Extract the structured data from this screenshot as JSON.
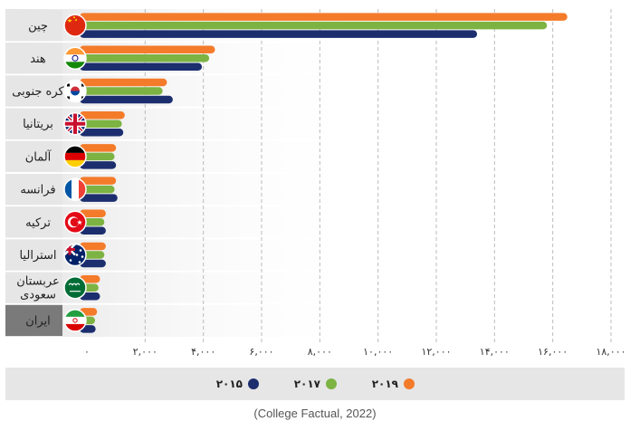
{
  "chart_data": {
    "type": "bar",
    "orientation": "horizontal",
    "categories": [
      "چین",
      "هند",
      "کره جنوبی",
      "بریتانیا",
      "آلمان",
      "فرانسه",
      "ترکیه",
      "استرالیا",
      "عربستان سعودی",
      "ایران"
    ],
    "category_lines": [
      [
        "چین"
      ],
      [
        "هند"
      ],
      [
        "کره جنوبی"
      ],
      [
        "بریتانیا"
      ],
      [
        "آلمان"
      ],
      [
        "فرانسه"
      ],
      [
        "ترکیه"
      ],
      [
        "استرالیا"
      ],
      [
        "عربستان",
        "سعودی"
      ],
      [
        "ایران"
      ]
    ],
    "highlighted_category": "ایران",
    "series": [
      {
        "name": "۲۰۱۹",
        "color": "#F47B2A",
        "values": [
          16500,
          4400,
          2750,
          1300,
          1000,
          1000,
          650,
          650,
          450,
          350
        ]
      },
      {
        "name": "۲۰۱۷",
        "color": "#7CB342",
        "values": [
          15800,
          4200,
          2600,
          1200,
          950,
          950,
          600,
          600,
          400,
          280
        ]
      },
      {
        "name": "۲۰۱۵",
        "color": "#1C2E6E",
        "values": [
          13400,
          3950,
          2950,
          1250,
          1000,
          1050,
          650,
          650,
          450,
          300
        ]
      }
    ],
    "legend_order": [
      "۲۰۱۵",
      "۲۰۱۷",
      "۲۰۱۹"
    ],
    "xlim": [
      0,
      18000
    ],
    "xticks": [
      0,
      2000,
      4000,
      6000,
      8000,
      10000,
      12000,
      14000,
      16000,
      18000
    ],
    "xtick_labels": [
      "۰",
      "۲,۰۰۰",
      "۴,۰۰۰",
      "۶,۰۰۰",
      "۸,۰۰۰",
      "۱۰,۰۰۰",
      "۱۲,۰۰۰",
      "۱۴,۰۰۰",
      "۱۶,۰۰۰",
      "۱۸,۰۰۰"
    ],
    "grid": "vertical-dashed",
    "legend_position": "bottom"
  },
  "flags": [
    "china-flag-icon",
    "india-flag-icon",
    "south-korea-flag-icon",
    "uk-flag-icon",
    "germany-flag-icon",
    "france-flag-icon",
    "turkey-flag-icon",
    "australia-flag-icon",
    "saudi-arabia-flag-icon",
    "iran-flag-icon"
  ],
  "source": "(College Factual, 2022)",
  "colors": {
    "label_bg": "#E6E6E6",
    "label_bg_highlight": "#7A7A7A",
    "legend_bg": "#E6E6E6",
    "grid": "#BBBBBB"
  }
}
